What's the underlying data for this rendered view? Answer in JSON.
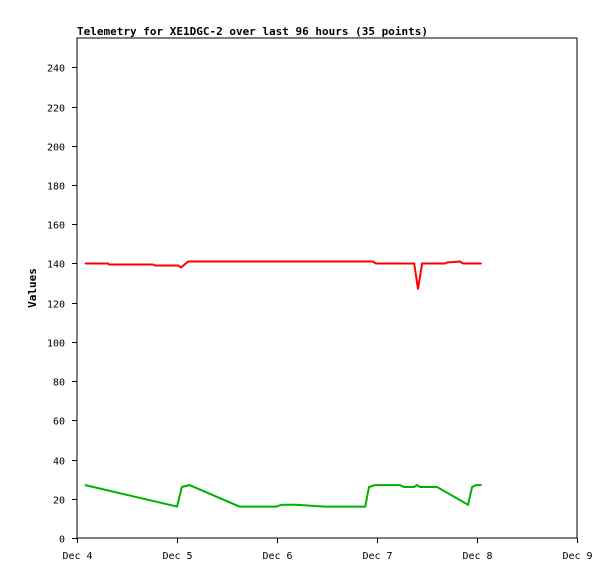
{
  "chart_data": {
    "type": "line",
    "title": "Telemetry for XE1DGC-2 over last 96 hours (35 points)",
    "xlabel": "",
    "ylabel": "Values",
    "ylim": [
      0,
      255
    ],
    "xlim": [
      "Dec 4 00:00",
      "Dec 9 00:00"
    ],
    "x_ticks": [
      "Dec 4",
      "Dec 5",
      "Dec 6",
      "Dec 7",
      "Dec 8",
      "Dec 9"
    ],
    "y_ticks": [
      0,
      20,
      40,
      60,
      80,
      100,
      120,
      140,
      160,
      180,
      200,
      220,
      240
    ],
    "grid": false,
    "series": [
      {
        "color": "#ff0000",
        "points": [
          [
            "Dec 4 02:00",
            140
          ],
          [
            "Dec 4 07:25",
            140
          ],
          [
            "Dec 4 07:40",
            139.5
          ],
          [
            "Dec 4 18:15",
            139.5
          ],
          [
            "Dec 4 18:45",
            139
          ],
          [
            "Dec 5 00:15",
            139
          ],
          [
            "Dec 5 01:00",
            138
          ],
          [
            "Dec 5 02:40",
            141
          ],
          [
            "Dec 6 23:00",
            141
          ],
          [
            "Dec 6 23:45",
            140
          ],
          [
            "Dec 7 08:55",
            140
          ],
          [
            "Dec 7 09:50",
            127
          ],
          [
            "Dec 7 10:50",
            140
          ],
          [
            "Dec 7 16:20",
            140
          ],
          [
            "Dec 7 16:50",
            140.5
          ],
          [
            "Dec 7 19:55",
            141
          ],
          [
            "Dec 7 20:40",
            140
          ],
          [
            "Dec 8 01:00",
            140
          ]
        ]
      },
      {
        "color": "#00b000",
        "points": [
          [
            "Dec 4 02:00",
            27
          ],
          [
            "Dec 5 00:00",
            16
          ],
          [
            "Dec 5 01:10",
            26
          ],
          [
            "Dec 5 03:00",
            27
          ],
          [
            "Dec 5 15:00",
            16
          ],
          [
            "Dec 5 23:45",
            16
          ],
          [
            "Dec 6 01:10",
            17
          ],
          [
            "Dec 6 04:35",
            17
          ],
          [
            "Dec 6 11:30",
            16
          ],
          [
            "Dec 6 21:10",
            16
          ],
          [
            "Dec 6 22:05",
            26
          ],
          [
            "Dec 6 23:30",
            27
          ],
          [
            "Dec 7 05:30",
            27
          ],
          [
            "Dec 7 06:30",
            26
          ],
          [
            "Dec 7 08:55",
            26
          ],
          [
            "Dec 7 09:35",
            27
          ],
          [
            "Dec 7 10:20",
            26
          ],
          [
            "Dec 7 14:25",
            26
          ],
          [
            "Dec 7 21:50",
            17
          ],
          [
            "Dec 7 22:50",
            26
          ],
          [
            "Dec 7 23:45",
            27
          ],
          [
            "Dec 8 01:00",
            27
          ]
        ]
      }
    ]
  }
}
